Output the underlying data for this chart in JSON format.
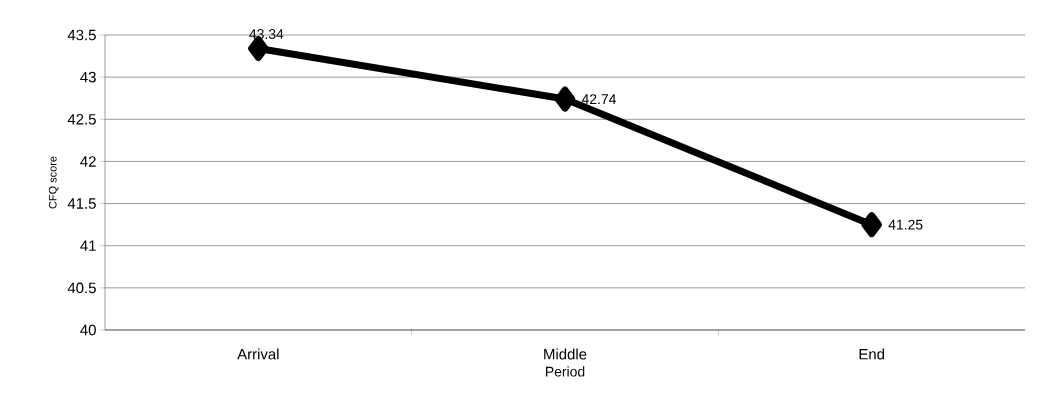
{
  "chart_data": {
    "type": "line",
    "xlabel": "Period",
    "ylabel": "CFQ score",
    "categories": [
      "Arrival",
      "Middle",
      "End"
    ],
    "values": [
      43.34,
      42.74,
      41.25
    ],
    "color": "#000000",
    "marker": "diamond",
    "line_style": "solid",
    "ylim": [
      40,
      43.5
    ],
    "yticks": [
      40,
      40.5,
      41,
      41.5,
      42,
      42.5,
      43,
      43.5
    ],
    "grid": "y",
    "data_labels": true
  }
}
